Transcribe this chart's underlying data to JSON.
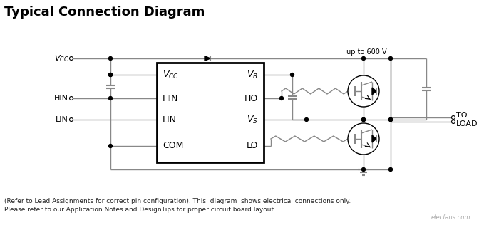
{
  "title": "Typical Connection Diagram",
  "title_fontsize": 13,
  "bg_color": "#ffffff",
  "line_color": "#888888",
  "text_color": "#000000",
  "footer_line1": "(Refer to Lead Assignments for correct pin configuration). This  diagram  shows electrical connections only.",
  "footer_line2": "Please refer to our Application Notes and DesignTips for proper circuit board layout.",
  "label_600v": "up to 600 V",
  "label_toload": "TO\nLOAD",
  "ic_left_pins": [
    "V_CC",
    "HIN",
    "LIN",
    "COM"
  ],
  "ic_right_pins": [
    "V_B",
    "HO",
    "V_S",
    "LO"
  ]
}
